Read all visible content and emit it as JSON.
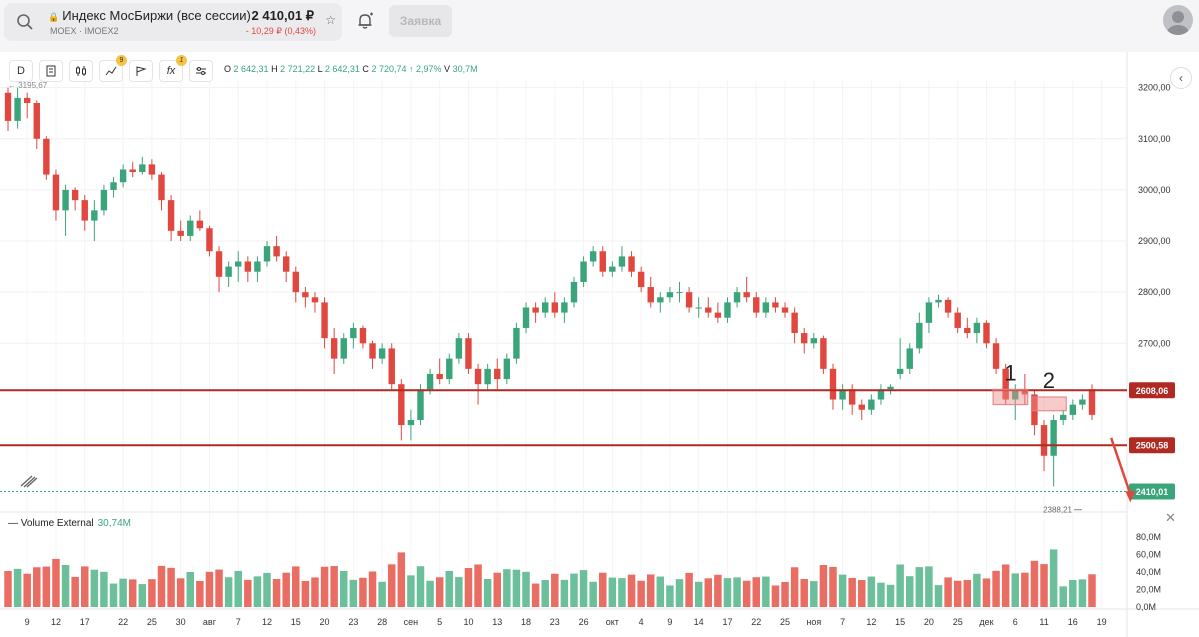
{
  "header": {
    "title": "Индекс МосБиржи (все сессии)",
    "subtitle": "MOEX · IMOEX2",
    "price": "2 410,01 ₽",
    "change": "- 10,29 ₽ (0,43%)",
    "order_label": "Заявка"
  },
  "toolbar": {
    "interval_label": "D",
    "indicators_badge": "9",
    "fx_label": "fx",
    "fx_badge": "1"
  },
  "ohlc": {
    "o_label": "O",
    "o": "2 642,31",
    "h_label": "H",
    "h": "2 721,22",
    "l_label": "L",
    "l": "2 642,31",
    "c_label": "C",
    "c": "2 720,74",
    "change": "↑ 2,97%",
    "v_label": "V",
    "v": "30,7M"
  },
  "volume_legend": {
    "name": "Volume External",
    "value": "30,74M"
  },
  "colors": {
    "up": "#3aa57a",
    "down": "#e0473e",
    "level": "#b02a24",
    "last": "#3aa57a"
  },
  "icons": [
    "search-icon",
    "lock-icon",
    "star-icon",
    "bell-icon",
    "avatar-icon",
    "chevron-left-icon",
    "close-icon",
    "drawing-tool-icon"
  ],
  "chart_data": {
    "type": "candlestick",
    "price_axis": {
      "ticks": [
        "3200,00",
        "3100,00",
        "3000,00",
        "2900,00",
        "2800,00",
        "2700,00"
      ],
      "values": [
        3200,
        3100,
        3000,
        2900,
        2800,
        2700
      ],
      "range": [
        2370,
        3215
      ]
    },
    "volume_axis": {
      "ticks": [
        "80,0M",
        "60,0M",
        "40,0M",
        "20,0M",
        "0,0M"
      ],
      "values": [
        80,
        60,
        40,
        20,
        0
      ],
      "range": [
        0,
        88
      ]
    },
    "x_labels": [
      "9",
      "12",
      "17",
      "22",
      "25",
      "30",
      "авг",
      "7",
      "12",
      "15",
      "20",
      "23",
      "28",
      "сен",
      "5",
      "10",
      "13",
      "18",
      "23",
      "26",
      "окт",
      "4",
      "9",
      "14",
      "17",
      "22",
      "25",
      "ноя",
      "7",
      "12",
      "15",
      "20",
      "25",
      "дек",
      "6",
      "11",
      "16",
      "19"
    ],
    "x_label_bars": [
      2,
      5,
      8,
      12,
      15,
      18,
      21,
      24,
      27,
      30,
      33,
      36,
      39,
      42,
      45,
      48,
      51,
      54,
      57,
      60,
      63,
      66,
      69,
      72,
      75,
      78,
      81,
      84,
      87,
      90,
      93,
      96,
      99,
      102,
      105,
      108,
      111,
      114
    ],
    "levels": [
      {
        "value": 2608.06,
        "label": "2608,06"
      },
      {
        "value": 2500.58,
        "label": "2500,58"
      }
    ],
    "last_price": {
      "value": 2410.01,
      "label": "2410,01"
    },
    "high_marker": {
      "value": 3195.67,
      "label": "3195,67"
    },
    "low_marker": {
      "value": 2388.21,
      "label": "2388,21"
    },
    "annotations": [
      {
        "label": "1",
        "bar_from": 103,
        "bar_to": 106,
        "value_low": 2580,
        "value_high": 2610
      },
      {
        "label": "2",
        "bar_from": 107,
        "bar_to": 110,
        "value_low": 2568,
        "value_high": 2595
      }
    ],
    "trend_arrow": {
      "from_bar": 115,
      "from_value": 2515,
      "to_bar": 117,
      "to_value": 2393
    },
    "candles": [
      [
        3190,
        3200,
        3115,
        3135
      ],
      [
        3135,
        3200,
        3120,
        3180
      ],
      [
        3180,
        3190,
        3140,
        3170
      ],
      [
        3170,
        3175,
        3080,
        3100
      ],
      [
        3100,
        3105,
        3020,
        3030
      ],
      [
        3030,
        3040,
        2940,
        2960
      ],
      [
        2960,
        3010,
        2910,
        3000
      ],
      [
        3000,
        3005,
        2960,
        2980
      ],
      [
        2980,
        2990,
        2920,
        2940
      ],
      [
        2940,
        2980,
        2900,
        2960
      ],
      [
        2960,
        3010,
        2950,
        3000
      ],
      [
        3000,
        3025,
        2985,
        3015
      ],
      [
        3015,
        3050,
        3005,
        3040
      ],
      [
        3040,
        3055,
        3025,
        3035
      ],
      [
        3035,
        3065,
        3030,
        3050
      ],
      [
        3050,
        3060,
        3020,
        3030
      ],
      [
        3030,
        3035,
        2960,
        2980
      ],
      [
        2980,
        2990,
        2900,
        2920
      ],
      [
        2920,
        2940,
        2900,
        2910
      ],
      [
        2910,
        2950,
        2900,
        2940
      ],
      [
        2940,
        2960,
        2920,
        2925
      ],
      [
        2925,
        2930,
        2870,
        2880
      ],
      [
        2880,
        2890,
        2800,
        2830
      ],
      [
        2830,
        2860,
        2810,
        2850
      ],
      [
        2850,
        2880,
        2820,
        2860
      ],
      [
        2860,
        2870,
        2820,
        2840
      ],
      [
        2840,
        2870,
        2820,
        2860
      ],
      [
        2860,
        2900,
        2850,
        2890
      ],
      [
        2890,
        2910,
        2860,
        2870
      ],
      [
        2870,
        2880,
        2820,
        2840
      ],
      [
        2840,
        2850,
        2780,
        2800
      ],
      [
        2800,
        2810,
        2770,
        2790
      ],
      [
        2790,
        2800,
        2760,
        2780
      ],
      [
        2780,
        2790,
        2690,
        2710
      ],
      [
        2710,
        2730,
        2640,
        2670
      ],
      [
        2670,
        2720,
        2660,
        2710
      ],
      [
        2710,
        2740,
        2690,
        2730
      ],
      [
        2730,
        2735,
        2690,
        2700
      ],
      [
        2700,
        2705,
        2650,
        2670
      ],
      [
        2670,
        2700,
        2660,
        2690
      ],
      [
        2690,
        2700,
        2610,
        2620
      ],
      [
        2620,
        2630,
        2510,
        2540
      ],
      [
        2540,
        2570,
        2510,
        2550
      ],
      [
        2550,
        2620,
        2540,
        2610
      ],
      [
        2610,
        2650,
        2600,
        2640
      ],
      [
        2640,
        2670,
        2620,
        2630
      ],
      [
        2630,
        2680,
        2620,
        2670
      ],
      [
        2670,
        2720,
        2660,
        2710
      ],
      [
        2710,
        2720,
        2640,
        2650
      ],
      [
        2650,
        2660,
        2580,
        2620
      ],
      [
        2620,
        2660,
        2610,
        2650
      ],
      [
        2650,
        2670,
        2610,
        2630
      ],
      [
        2630,
        2680,
        2620,
        2670
      ],
      [
        2670,
        2740,
        2660,
        2730
      ],
      [
        2730,
        2780,
        2720,
        2770
      ],
      [
        2770,
        2780,
        2740,
        2760
      ],
      [
        2760,
        2790,
        2750,
        2780
      ],
      [
        2780,
        2800,
        2750,
        2760
      ],
      [
        2760,
        2790,
        2740,
        2780
      ],
      [
        2780,
        2830,
        2770,
        2820
      ],
      [
        2820,
        2870,
        2810,
        2860
      ],
      [
        2860,
        2890,
        2850,
        2880
      ],
      [
        2880,
        2890,
        2830,
        2840
      ],
      [
        2840,
        2860,
        2830,
        2850
      ],
      [
        2850,
        2890,
        2840,
        2870
      ],
      [
        2870,
        2880,
        2830,
        2840
      ],
      [
        2840,
        2850,
        2800,
        2810
      ],
      [
        2810,
        2830,
        2770,
        2780
      ],
      [
        2780,
        2800,
        2760,
        2790
      ],
      [
        2790,
        2810,
        2780,
        2800
      ],
      [
        2800,
        2820,
        2780,
        2800
      ],
      [
        2800,
        2810,
        2760,
        2770
      ],
      [
        2770,
        2790,
        2750,
        2770
      ],
      [
        2770,
        2790,
        2750,
        2760
      ],
      [
        2760,
        2780,
        2740,
        2750
      ],
      [
        2750,
        2790,
        2740,
        2780
      ],
      [
        2780,
        2810,
        2770,
        2800
      ],
      [
        2800,
        2830,
        2780,
        2790
      ],
      [
        2790,
        2800,
        2750,
        2760
      ],
      [
        2760,
        2790,
        2750,
        2780
      ],
      [
        2780,
        2790,
        2760,
        2770
      ],
      [
        2770,
        2780,
        2750,
        2760
      ],
      [
        2760,
        2770,
        2700,
        2720
      ],
      [
        2720,
        2730,
        2680,
        2700
      ],
      [
        2700,
        2720,
        2690,
        2710
      ],
      [
        2710,
        2715,
        2640,
        2650
      ],
      [
        2650,
        2660,
        2570,
        2590
      ],
      [
        2590,
        2620,
        2570,
        2610
      ],
      [
        2610,
        2620,
        2560,
        2580
      ],
      [
        2580,
        2590,
        2550,
        2570
      ],
      [
        2570,
        2600,
        2560,
        2590
      ],
      [
        2590,
        2620,
        2580,
        2610
      ],
      [
        2610,
        2620,
        2600,
        2615
      ],
      [
        2640,
        2710,
        2630,
        2650
      ],
      [
        2650,
        2700,
        2640,
        2690
      ],
      [
        2690,
        2760,
        2680,
        2740
      ],
      [
        2740,
        2790,
        2720,
        2780
      ],
      [
        2780,
        2795,
        2770,
        2785
      ],
      [
        2785,
        2790,
        2750,
        2760
      ],
      [
        2760,
        2770,
        2720,
        2730
      ],
      [
        2730,
        2750,
        2710,
        2720
      ],
      [
        2720,
        2750,
        2700,
        2740
      ],
      [
        2740,
        2745,
        2690,
        2700
      ],
      [
        2700,
        2710,
        2640,
        2650
      ],
      [
        2650,
        2660,
        2580,
        2590
      ],
      [
        2590,
        2620,
        2550,
        2610
      ],
      [
        2610,
        2640,
        2580,
        2600
      ],
      [
        2600,
        2610,
        2520,
        2540
      ],
      [
        2540,
        2550,
        2450,
        2480
      ],
      [
        2480,
        2560,
        2420,
        2550
      ],
      [
        2550,
        2570,
        2540,
        2560
      ],
      [
        2560,
        2590,
        2550,
        2580
      ],
      [
        2580,
        2600,
        2570,
        2590
      ],
      [
        2610,
        2620,
        2550,
        2560
      ]
    ],
    "volumes": []
  }
}
